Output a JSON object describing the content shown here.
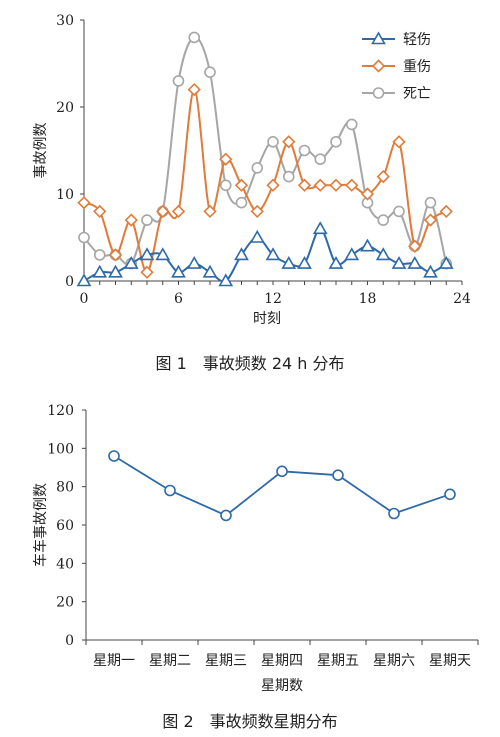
{
  "figure1": {
    "caption": "图 1　事故频数 24 h 分布",
    "chart_data": {
      "type": "line",
      "xlabel": "时刻",
      "ylabel": "事故例数",
      "xlim": [
        0,
        24
      ],
      "ylim": [
        0,
        30
      ],
      "xticks": [
        0,
        6,
        12,
        18,
        24
      ],
      "yticks": [
        0,
        10,
        20,
        30
      ],
      "legend_position": "top-right",
      "x": [
        0,
        1,
        2,
        3,
        4,
        5,
        6,
        7,
        8,
        9,
        10,
        11,
        12,
        13,
        14,
        15,
        16,
        17,
        18,
        19,
        20,
        21,
        22,
        23
      ],
      "series": [
        {
          "name": "轻伤",
          "color": "#2e6aa8",
          "marker": "triangle",
          "values": [
            0,
            1,
            1,
            2,
            3,
            3,
            1,
            2,
            1,
            0,
            3,
            5,
            3,
            2,
            2,
            6,
            2,
            3,
            4,
            3,
            2,
            2,
            1,
            2
          ]
        },
        {
          "name": "重伤",
          "color": "#e07b39",
          "marker": "diamond",
          "values": [
            9,
            8,
            3,
            7,
            1,
            8,
            8,
            22,
            8,
            14,
            11,
            8,
            11,
            16,
            11,
            11,
            11,
            11,
            10,
            12,
            16,
            4,
            7,
            8
          ]
        },
        {
          "name": "死亡",
          "color": "#a6a6a6",
          "marker": "circle",
          "values": [
            5,
            3,
            3,
            2,
            7,
            8,
            23,
            28,
            24,
            11,
            9,
            13,
            16,
            12,
            15,
            14,
            16,
            18,
            9,
            7,
            8,
            4,
            9,
            2
          ]
        }
      ]
    }
  },
  "figure2": {
    "caption": "图 2　事故频数星期分布",
    "chart_data": {
      "type": "line",
      "xlabel": "星期数",
      "ylabel": "车车事故例数",
      "ylim": [
        0,
        120
      ],
      "yticks": [
        0,
        20,
        40,
        60,
        80,
        100,
        120
      ],
      "categories": [
        "星期一",
        "星期二",
        "星期三",
        "星期四",
        "星期五",
        "星期六",
        "星期天"
      ],
      "series": [
        {
          "color": "#2e6aa8",
          "marker": "circle",
          "values": [
            96,
            78,
            65,
            88,
            86,
            66,
            76
          ]
        }
      ]
    }
  }
}
